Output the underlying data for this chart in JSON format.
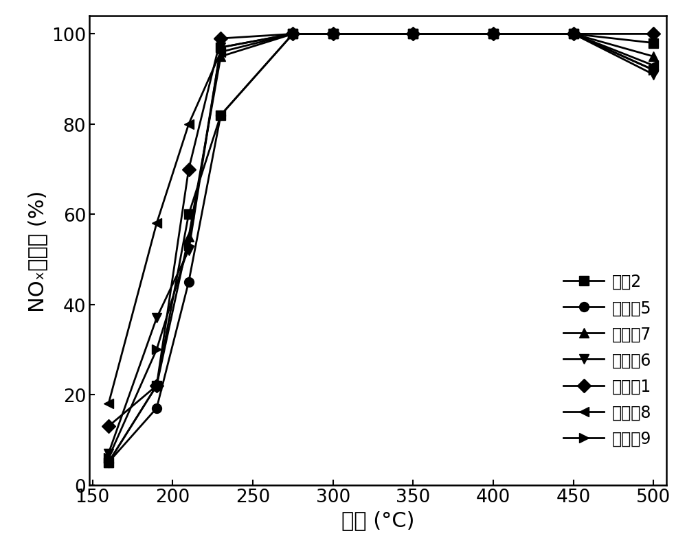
{
  "series": [
    {
      "label": "对比2",
      "marker": "s",
      "x": [
        160,
        190,
        210,
        230,
        275,
        300,
        350,
        400,
        450,
        500
      ],
      "y": [
        5,
        22,
        60,
        82,
        100,
        100,
        100,
        100,
        100,
        98
      ]
    },
    {
      "label": "实施例5",
      "marker": "o",
      "x": [
        160,
        190,
        210,
        230,
        275,
        300,
        350,
        400,
        450,
        500
      ],
      "y": [
        5,
        17,
        45,
        82,
        100,
        100,
        100,
        100,
        100,
        92
      ]
    },
    {
      "label": "实施例7",
      "marker": "^",
      "x": [
        160,
        190,
        210,
        230,
        275,
        300,
        350,
        400,
        450,
        500
      ],
      "y": [
        5,
        22,
        55,
        95,
        100,
        100,
        100,
        100,
        100,
        95
      ]
    },
    {
      "label": "实施例6",
      "marker": "v",
      "x": [
        160,
        190,
        210,
        230,
        275,
        300,
        350,
        400,
        450,
        500
      ],
      "y": [
        7,
        37,
        52,
        97,
        100,
        100,
        100,
        100,
        100,
        91
      ]
    },
    {
      "label": "实施例1",
      "marker": "D",
      "x": [
        160,
        190,
        210,
        230,
        275,
        300,
        350,
        400,
        450,
        500
      ],
      "y": [
        13,
        22,
        70,
        99,
        100,
        100,
        100,
        100,
        100,
        100
      ]
    },
    {
      "label": "实施例8",
      "marker": "<",
      "x": [
        160,
        190,
        210,
        230,
        275,
        300,
        350,
        400,
        450,
        500
      ],
      "y": [
        18,
        58,
        80,
        96,
        100,
        100,
        100,
        100,
        100,
        93
      ]
    },
    {
      "label": "实施例9",
      "marker": ">",
      "x": [
        160,
        190,
        210,
        230,
        275,
        300,
        350,
        400,
        450,
        500
      ],
      "y": [
        6,
        30,
        53,
        97,
        100,
        100,
        100,
        100,
        100,
        92
      ]
    }
  ],
  "xlabel": "温度 (°C)",
  "ylabel": "NOₓ转化率 (%)",
  "xlim": [
    148,
    508
  ],
  "ylim": [
    0,
    104
  ],
  "xticks": [
    150,
    200,
    250,
    300,
    350,
    400,
    450,
    500
  ],
  "yticks": [
    0,
    20,
    40,
    60,
    80,
    100
  ],
  "color": "#000000",
  "linewidth": 2.0,
  "markersize": 10,
  "legend_fontsize": 17,
  "axis_fontsize": 22,
  "tick_fontsize": 19,
  "background_color": "#ffffff"
}
